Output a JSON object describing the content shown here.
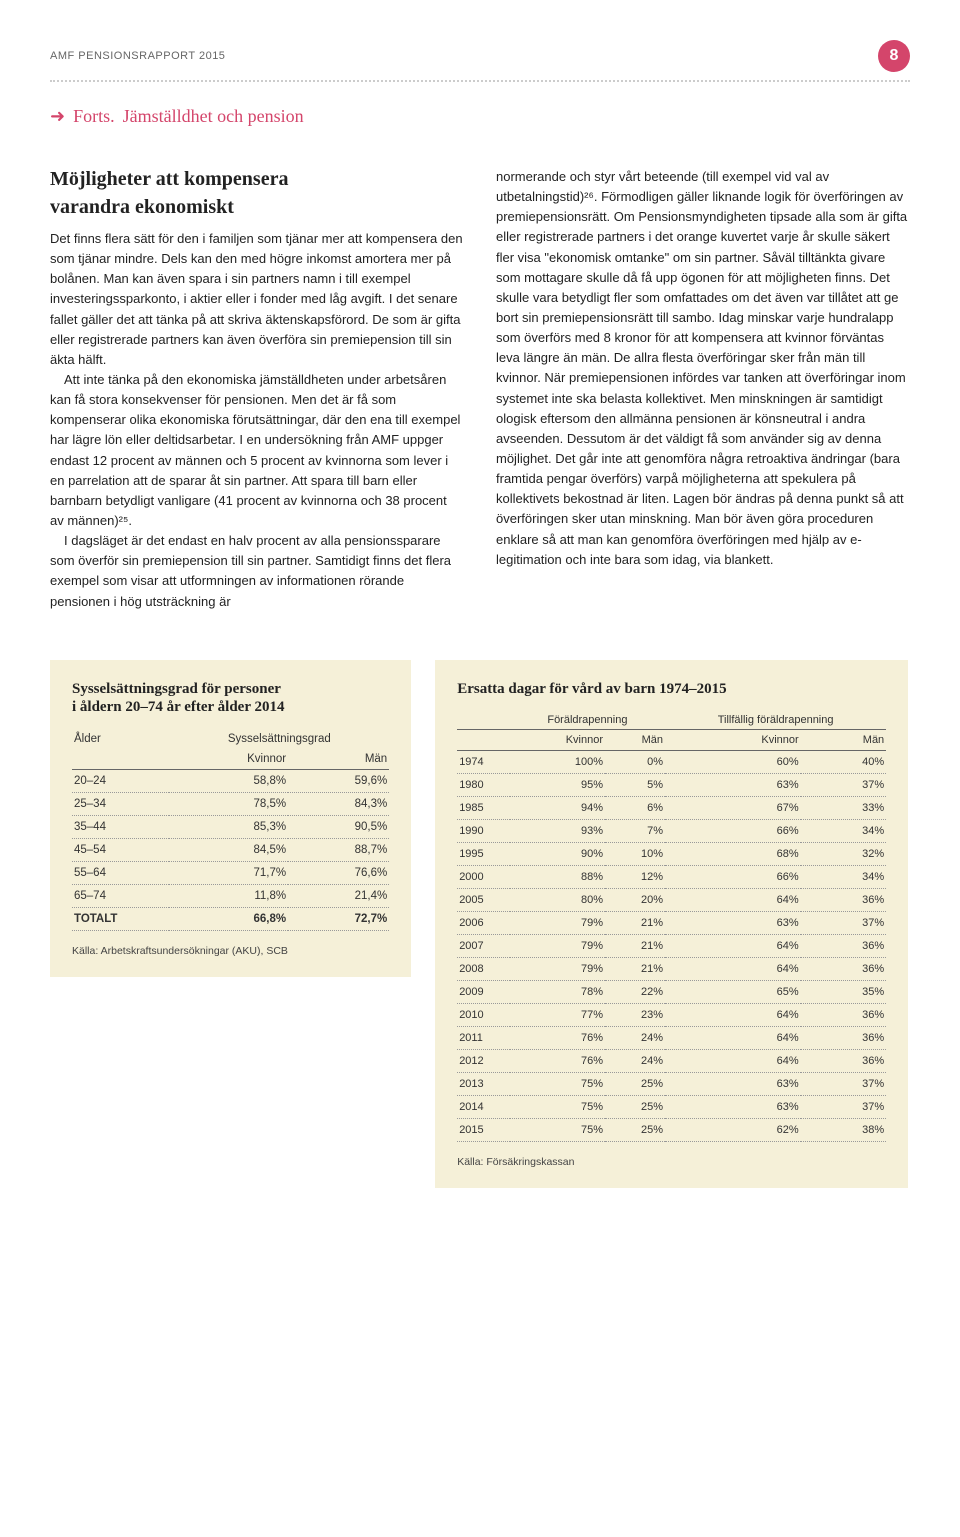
{
  "doc_header": "AMF PENSIONSRAPPORT 2015",
  "page_number": "8",
  "forts_label": "Forts.",
  "forts_heading": "Jämställdhet och pension",
  "section_title_1": "Möjligheter att kompensera",
  "section_title_2": "varandra ekonomiskt",
  "col1_p1": "Det finns flera sätt för den i familjen som tjänar mer att kompensera den som tjänar mindre. Dels kan den med högre inkomst amortera mer på bolånen. Man kan även spara i sin partners namn i till exempel investeringssparkonto, i aktier eller i fonder med låg avgift. I det senare fallet gäller det att tänka på att skriva äktenskapsförord. De som är gifta eller registrerade partners kan även överföra sin premiepension till sin äkta hälft.",
  "col1_p2": "Att inte tänka på den ekonomiska jämställdheten under arbetsåren kan få stora konsekvenser för pensionen. Men det är få som kompenserar olika ekonomiska förutsättningar, där den ena till exempel har lägre lön eller deltidsarbetar. I en undersökning från AMF uppger endast 12 procent av männen och 5 procent av kvinnorna som lever i en parrelation att de sparar åt sin partner. Att spara till barn eller barnbarn betydligt vanligare (41 procent av kvinnorna och 38 procent av männen)²⁵.",
  "col1_p3": "I dagsläget är det endast en halv procent av alla pensionssparare som överför sin premiepension till sin partner. Samtidigt finns det flera exempel som visar att utformningen av informationen rörande pensionen i hög utsträckning är",
  "col2_p1": "normerande och styr vårt beteende (till exempel vid val av utbetalningstid)²⁶. Förmodligen gäller liknande logik för överföringen av premiepensionsrätt. Om Pensionsmyndigheten tipsade alla som är gifta eller registrerade partners i det orange kuvertet varje år skulle säkert fler visa \"ekonomisk omtanke\" om sin partner. Såväl tilltänkta givare som mottagare skulle då få upp ögonen för att möjligheten finns. Det skulle vara betydligt fler som omfattades om det även var tillåtet att ge bort sin premiepensionsrätt till sambo. Idag minskar varje hundralapp som överförs med 8 kronor för att kompensera att kvinnor förväntas leva längre än män. De allra flesta överföringar sker från män till kvinnor. När premiepensionen infördes var tanken att överföringar inom systemet inte ska belasta kollektivet. Men minskningen är samtidigt ologisk eftersom den allmänna pensionen är könsneutral i andra avseenden. Dessutom är det väldigt få som använder sig av denna möjlighet. Det går inte att genomföra några retroaktiva ändringar (bara framtida pengar överförs) varpå möjligheterna att spekulera på kollektivets bekostnad är liten. Lagen bör ändras på denna punkt så att överföringen sker utan minskning. Man bör även göra proceduren enklare så att man kan genomföra överföringen med hjälp av e-legitimation och inte bara som idag, via blankett.",
  "table1": {
    "title_1": "Sysselsättningsgrad för personer",
    "title_2": "i åldern 20–74 år efter ålder 2014",
    "col_age": "Ålder",
    "col_grade": "Sysselsättningsgrad",
    "col_women": "Kvinnor",
    "col_men": "Män",
    "rows": [
      {
        "age": "20–24",
        "w": "58,8%",
        "m": "59,6%"
      },
      {
        "age": "25–34",
        "w": "78,5%",
        "m": "84,3%"
      },
      {
        "age": "35–44",
        "w": "85,3%",
        "m": "90,5%"
      },
      {
        "age": "45–54",
        "w": "84,5%",
        "m": "88,7%"
      },
      {
        "age": "55–64",
        "w": "71,7%",
        "m": "76,6%"
      },
      {
        "age": "65–74",
        "w": "11,8%",
        "m": "21,4%"
      }
    ],
    "total_label": "TOTALT",
    "total_w": "66,8%",
    "total_m": "72,7%",
    "source": "Källa: Arbetskraftsundersökningar (AKU), SCB"
  },
  "table2": {
    "title": "Ersatta dagar för vård av barn 1974–2015",
    "group1": "Föräldrapenning",
    "group2": "Tillfällig föräldrapenning",
    "col_women": "Kvinnor",
    "col_men": "Män",
    "rows": [
      {
        "y": "1974",
        "fw": "100%",
        "fm": "0%",
        "tw": "60%",
        "tm": "40%"
      },
      {
        "y": "1980",
        "fw": "95%",
        "fm": "5%",
        "tw": "63%",
        "tm": "37%"
      },
      {
        "y": "1985",
        "fw": "94%",
        "fm": "6%",
        "tw": "67%",
        "tm": "33%"
      },
      {
        "y": "1990",
        "fw": "93%",
        "fm": "7%",
        "tw": "66%",
        "tm": "34%"
      },
      {
        "y": "1995",
        "fw": "90%",
        "fm": "10%",
        "tw": "68%",
        "tm": "32%"
      },
      {
        "y": "2000",
        "fw": "88%",
        "fm": "12%",
        "tw": "66%",
        "tm": "34%"
      },
      {
        "y": "2005",
        "fw": "80%",
        "fm": "20%",
        "tw": "64%",
        "tm": "36%"
      },
      {
        "y": "2006",
        "fw": "79%",
        "fm": "21%",
        "tw": "63%",
        "tm": "37%"
      },
      {
        "y": "2007",
        "fw": "79%",
        "fm": "21%",
        "tw": "64%",
        "tm": "36%"
      },
      {
        "y": "2008",
        "fw": "79%",
        "fm": "21%",
        "tw": "64%",
        "tm": "36%"
      },
      {
        "y": "2009",
        "fw": "78%",
        "fm": "22%",
        "tw": "65%",
        "tm": "35%"
      },
      {
        "y": "2010",
        "fw": "77%",
        "fm": "23%",
        "tw": "64%",
        "tm": "36%"
      },
      {
        "y": "2011",
        "fw": "76%",
        "fm": "24%",
        "tw": "64%",
        "tm": "36%"
      },
      {
        "y": "2012",
        "fw": "76%",
        "fm": "24%",
        "tw": "64%",
        "tm": "36%"
      },
      {
        "y": "2013",
        "fw": "75%",
        "fm": "25%",
        "tw": "63%",
        "tm": "37%"
      },
      {
        "y": "2014",
        "fw": "75%",
        "fm": "25%",
        "tw": "63%",
        "tm": "37%"
      },
      {
        "y": "2015",
        "fw": "75%",
        "fm": "25%",
        "tw": "62%",
        "tm": "38%"
      }
    ],
    "source": "Källa: Försäkringskassan"
  }
}
